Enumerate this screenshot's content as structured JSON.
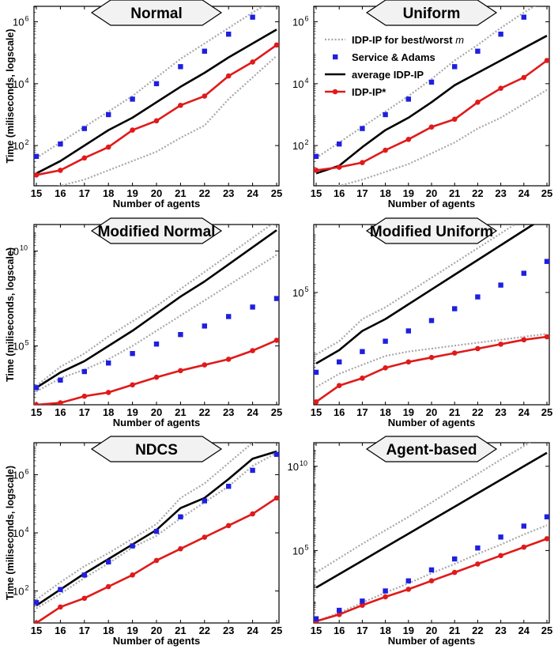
{
  "colors": {
    "sa": "#1f1fe0",
    "ip_star": "#e01a1a",
    "avg": "#000000",
    "bounds": "#a8a8a8",
    "hexagon_fill": "#f2f2f2"
  },
  "ylabel": "Time (miliseconds, logscale)",
  "chart_data": [
    {
      "type": "line",
      "title": "Normal",
      "xlabel": "Number of agents",
      "x": [
        15,
        16,
        17,
        18,
        19,
        20,
        21,
        22,
        23,
        24,
        25
      ],
      "xticks": [
        "15",
        "16",
        "17",
        "18",
        "19",
        "20",
        "21",
        "22",
        "23",
        "24",
        "25"
      ],
      "ylim_log10": [
        0.7,
        6.5
      ],
      "yticks": [
        {
          "exp": 2,
          "base": "10",
          "sup": "2"
        },
        {
          "exp": 4,
          "base": "10",
          "sup": "4"
        },
        {
          "exp": 6,
          "base": "10",
          "sup": "6"
        }
      ],
      "series": [
        {
          "name": "IDP-IP for best/worst m (upper)",
          "key": "upper",
          "log10": [
            1.6,
            2.1,
            2.6,
            3.1,
            3.6,
            4.2,
            4.8,
            5.3,
            5.8,
            6.3,
            6.75
          ]
        },
        {
          "name": "IDP-IP for best/worst m (lower)",
          "key": "lower",
          "log10": [
            0.5,
            0.7,
            0.9,
            1.2,
            1.5,
            1.8,
            2.25,
            2.65,
            3.5,
            4.2,
            4.9
          ]
        },
        {
          "name": "Service & Adams",
          "key": "sa",
          "log10": [
            1.65,
            2.05,
            2.55,
            3.0,
            3.5,
            4.0,
            4.55,
            5.05,
            5.6,
            6.15,
            6.65
          ]
        },
        {
          "name": "average IDP-IP",
          "key": "avg",
          "log10": [
            1.1,
            1.5,
            2.0,
            2.5,
            2.9,
            3.4,
            3.9,
            4.35,
            4.85,
            5.3,
            5.75
          ]
        },
        {
          "name": "IDP-IP*",
          "key": "ipstar",
          "log10": [
            1.05,
            1.2,
            1.6,
            1.95,
            2.5,
            2.8,
            3.3,
            3.6,
            4.25,
            4.7,
            5.25
          ]
        }
      ]
    },
    {
      "type": "line",
      "title": "Uniform",
      "xlabel": "Number of agents",
      "x": [
        15,
        16,
        17,
        18,
        19,
        20,
        21,
        22,
        23,
        24,
        25
      ],
      "xticks": [
        "15",
        "16",
        "17",
        "18",
        "19",
        "20",
        "21",
        "22",
        "23",
        "24",
        "25"
      ],
      "ylim_log10": [
        0.7,
        6.5
      ],
      "yticks": [
        {
          "exp": 2,
          "base": "10",
          "sup": "2"
        },
        {
          "exp": 4,
          "base": "10",
          "sup": "4"
        },
        {
          "exp": 6,
          "base": "10",
          "sup": "6"
        }
      ],
      "series": [
        {
          "name": "IDP-IP for best/worst m (upper)",
          "key": "upper",
          "log10": [
            1.6,
            2.1,
            2.6,
            3.1,
            3.6,
            4.15,
            4.75,
            5.25,
            5.8,
            6.3,
            6.75
          ]
        },
        {
          "name": "IDP-IP for best/worst m (lower)",
          "key": "lower",
          "log10": [
            0.5,
            0.7,
            0.9,
            1.15,
            1.4,
            1.75,
            2.1,
            2.55,
            2.9,
            3.35,
            3.8
          ]
        },
        {
          "name": "Service & Adams",
          "key": "sa",
          "log10": [
            1.65,
            2.05,
            2.55,
            3.0,
            3.5,
            4.05,
            4.55,
            5.05,
            5.6,
            6.15,
            6.65
          ]
        },
        {
          "name": "average IDP-IP",
          "key": "avg",
          "log10": [
            1.1,
            1.35,
            1.95,
            2.5,
            2.9,
            3.4,
            3.95,
            4.35,
            4.75,
            5.15,
            5.55
          ]
        },
        {
          "name": "IDP-IP*",
          "key": "ipstar",
          "log10": [
            1.2,
            1.3,
            1.45,
            1.85,
            2.2,
            2.6,
            2.85,
            3.4,
            3.85,
            4.2,
            4.75
          ]
        }
      ],
      "legend": {
        "placement": "top",
        "entries": [
          {
            "key": "bounds",
            "label": "IDP-IP for best/worst ",
            "italic": "m"
          },
          {
            "key": "sa",
            "label": "Service & Adams"
          },
          {
            "key": "avg",
            "label": "average IDP-IP"
          },
          {
            "key": "ipstar",
            "label": "IDP-IP*"
          }
        ]
      }
    },
    {
      "type": "line",
      "title": "Modified Normal",
      "xlabel": "Number of agents",
      "x": [
        15,
        16,
        17,
        18,
        19,
        20,
        21,
        22,
        23,
        24,
        25
      ],
      "xticks": [
        "15",
        "16",
        "17",
        "18",
        "19",
        "20",
        "21",
        "22",
        "23",
        "24",
        "25"
      ],
      "ylim_log10": [
        1.9,
        11.4
      ],
      "yticks": [
        {
          "exp": 5,
          "base": "10",
          "sup": "5"
        },
        {
          "exp": 10,
          "base": "10",
          "sup": "10"
        }
      ],
      "series": [
        {
          "name": "IDP-IP for best/worst m (upper)",
          "key": "upper",
          "log10": [
            2.9,
            3.9,
            4.6,
            5.5,
            6.3,
            7.1,
            8.0,
            8.9,
            9.8,
            10.7,
            11.6
          ]
        },
        {
          "name": "IDP-IP for best/worst m (lower)",
          "key": "lower",
          "log10": [
            2.6,
            3.3,
            3.75,
            4.3,
            5.0,
            5.8,
            6.6,
            7.4,
            8.2,
            9.0,
            9.8
          ]
        },
        {
          "name": "Service & Adams",
          "key": "sa",
          "log10": [
            2.8,
            3.2,
            3.65,
            4.1,
            4.6,
            5.1,
            5.6,
            6.05,
            6.55,
            7.05,
            7.5
          ]
        },
        {
          "name": "average IDP-IP",
          "key": "avg",
          "log10": [
            2.8,
            3.6,
            4.2,
            5.0,
            5.8,
            6.7,
            7.6,
            8.4,
            9.3,
            10.2,
            11.1
          ]
        },
        {
          "name": "IDP-IP*",
          "key": "ipstar",
          "log10": [
            1.9,
            2.0,
            2.35,
            2.55,
            2.95,
            3.35,
            3.7,
            4.0,
            4.3,
            4.75,
            5.3
          ]
        }
      ]
    },
    {
      "type": "line",
      "title": "Modified Uniform",
      "xlabel": "Number of agents",
      "x": [
        15,
        16,
        17,
        18,
        19,
        20,
        21,
        22,
        23,
        24,
        25
      ],
      "xticks": [
        "15",
        "16",
        "17",
        "18",
        "19",
        "20",
        "21",
        "22",
        "23",
        "24",
        "25"
      ],
      "ylim_log10": [
        1.2,
        7.3
      ],
      "yticks": [
        {
          "exp": 5,
          "base": "10",
          "sup": "5"
        }
      ],
      "series": [
        {
          "name": "IDP-IP for best/worst m (upper)",
          "key": "upper",
          "log10": [
            2.9,
            3.35,
            4.1,
            4.5,
            5.0,
            5.5,
            6.0,
            6.5,
            7.0,
            7.5,
            8.0
          ]
        },
        {
          "name": "IDP-IP for best/worst m (lower)",
          "key": "lower",
          "log10": [
            1.8,
            2.25,
            2.55,
            2.85,
            3.0,
            3.1,
            3.2,
            3.3,
            3.4,
            3.5,
            3.6
          ]
        },
        {
          "name": "Service & Adams",
          "key": "sa",
          "log10": [
            2.3,
            2.65,
            3.0,
            3.35,
            3.7,
            4.05,
            4.45,
            4.85,
            5.25,
            5.65,
            6.05
          ]
        },
        {
          "name": "average IDP-IP",
          "key": "avg",
          "log10": [
            2.6,
            3.05,
            3.7,
            4.1,
            4.6,
            5.1,
            5.6,
            6.1,
            6.6,
            7.1,
            7.6
          ]
        },
        {
          "name": "IDP-IP*",
          "key": "ipstar",
          "log10": [
            1.3,
            1.85,
            2.1,
            2.45,
            2.65,
            2.8,
            2.95,
            3.1,
            3.25,
            3.4,
            3.5
          ]
        }
      ]
    },
    {
      "type": "line",
      "title": "NDCS",
      "xlabel": "Number of agents",
      "x": [
        15,
        16,
        17,
        18,
        19,
        20,
        21,
        22,
        23,
        24,
        25
      ],
      "xticks": [
        "15",
        "16",
        "17",
        "18",
        "19",
        "20",
        "21",
        "22",
        "23",
        "24",
        "25"
      ],
      "ylim_log10": [
        0.9,
        7.1
      ],
      "yticks": [
        {
          "exp": 2,
          "base": "10",
          "sup": "2"
        },
        {
          "exp": 4,
          "base": "10",
          "sup": "4"
        },
        {
          "exp": 6,
          "base": "10",
          "sup": "6"
        }
      ],
      "series": [
        {
          "name": "IDP-IP for best/worst m (upper)",
          "key": "upper",
          "log10": [
            1.7,
            2.3,
            2.85,
            3.3,
            3.8,
            4.3,
            5.2,
            5.7,
            6.4,
            7.1,
            7.3
          ]
        },
        {
          "name": "IDP-IP for best/worst m (lower)",
          "key": "lower",
          "log10": [
            1.4,
            1.9,
            2.45,
            2.95,
            3.5,
            3.9,
            4.5,
            5.05,
            5.6,
            6.3,
            6.75
          ]
        },
        {
          "name": "Service & Adams",
          "key": "sa",
          "log10": [
            1.6,
            2.05,
            2.55,
            3.0,
            3.55,
            4.05,
            4.55,
            5.1,
            5.6,
            6.15,
            6.7
          ]
        },
        {
          "name": "average IDP-IP",
          "key": "avg",
          "log10": [
            1.5,
            2.05,
            2.6,
            3.1,
            3.6,
            4.1,
            4.85,
            5.2,
            5.85,
            6.55,
            6.8
          ]
        },
        {
          "name": "IDP-IP*",
          "key": "ipstar",
          "log10": [
            0.9,
            1.45,
            1.75,
            2.15,
            2.55,
            3.05,
            3.45,
            3.85,
            4.25,
            4.65,
            5.2
          ]
        }
      ]
    },
    {
      "type": "line",
      "title": "Agent-based",
      "xlabel": "Number of agents",
      "x": [
        15,
        16,
        17,
        18,
        19,
        20,
        21,
        22,
        23,
        24,
        25
      ],
      "xticks": [
        "15",
        "16",
        "17",
        "18",
        "19",
        "20",
        "21",
        "22",
        "23",
        "24",
        "25"
      ],
      "ylim_log10": [
        0.7,
        11.4
      ],
      "yticks": [
        {
          "exp": 5,
          "base": "10",
          "sup": "5"
        },
        {
          "exp": 10,
          "base": "10",
          "sup": "10"
        }
      ],
      "series": [
        {
          "name": "IDP-IP for best/worst m (upper)",
          "key": "upper",
          "log10": [
            3.7,
            4.55,
            5.4,
            6.2,
            7.0,
            7.85,
            8.7,
            9.55,
            10.4,
            11.2,
            12.0
          ]
        },
        {
          "name": "IDP-IP for best/worst m (lower)",
          "key": "lower",
          "log10": [
            0.8,
            1.3,
            1.9,
            2.5,
            3.05,
            3.65,
            4.2,
            4.8,
            5.35,
            5.95,
            6.5
          ]
        },
        {
          "name": "Service & Adams",
          "key": "sa",
          "log10": [
            0.95,
            1.45,
            2.0,
            2.6,
            3.2,
            3.85,
            4.5,
            5.15,
            5.8,
            6.45,
            7.0
          ]
        },
        {
          "name": "average IDP-IP",
          "key": "avg",
          "log10": [
            2.8,
            3.6,
            4.4,
            5.2,
            6.0,
            6.8,
            7.6,
            8.4,
            9.2,
            10.0,
            10.8
          ]
        },
        {
          "name": "IDP-IP*",
          "key": "ipstar",
          "log10": [
            0.8,
            1.2,
            1.75,
            2.25,
            2.7,
            3.2,
            3.7,
            4.2,
            4.7,
            5.2,
            5.7
          ]
        }
      ]
    }
  ]
}
